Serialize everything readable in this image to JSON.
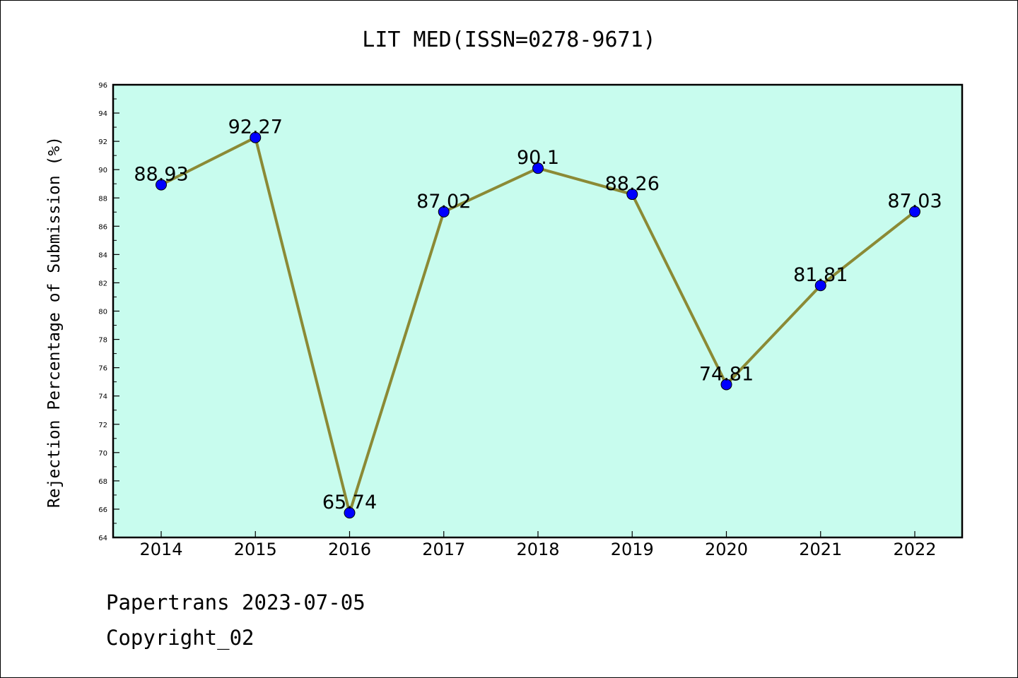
{
  "chart_data": {
    "type": "line",
    "title": "LIT MED(ISSN=0278-9671)",
    "xlabel": "",
    "ylabel": "Rejection Percentage of Submission (%)",
    "categories": [
      "2014",
      "2015",
      "2016",
      "2017",
      "2018",
      "2019",
      "2020",
      "2021",
      "2022"
    ],
    "values": [
      88.93,
      92.27,
      65.74,
      87.02,
      90.1,
      88.26,
      74.81,
      81.81,
      87.03
    ],
    "data_labels": [
      "88.93",
      "92.27",
      "65.74",
      "87.02",
      "90.1",
      "88.26",
      "74.81",
      "81.81",
      "87.03"
    ],
    "ylim": [
      64,
      96
    ],
    "yticks": [
      64,
      66,
      68,
      70,
      72,
      74,
      76,
      78,
      80,
      82,
      84,
      86,
      88,
      90,
      92,
      94,
      96
    ],
    "grid": false,
    "colors": {
      "plot_background": "#c8fcee",
      "line": "#8b8a35",
      "marker": "#0000ff"
    }
  },
  "footer": {
    "line1": "Papertrans 2023-07-05",
    "line2": "Copyright_02"
  }
}
